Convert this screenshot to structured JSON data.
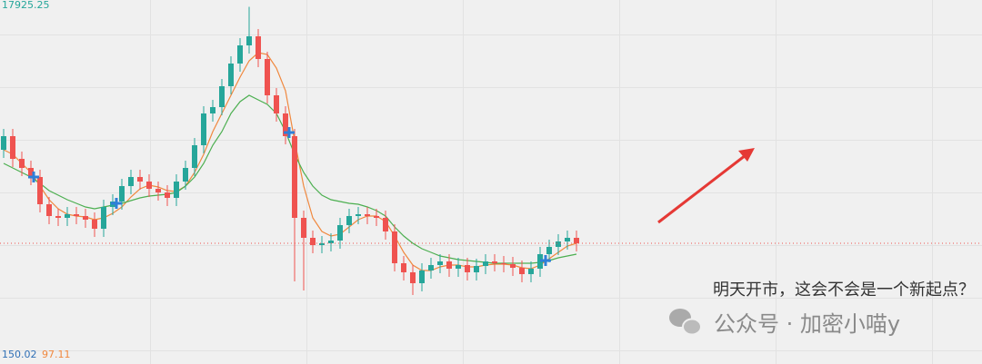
{
  "chart_data": {
    "type": "candlestick",
    "up_color": "#26a69a",
    "down_color": "#ef5350",
    "ylim": [
      14000,
      18000
    ],
    "open": [
      16350,
      16500,
      16250,
      16150,
      16050,
      15750,
      15620,
      15600,
      15640,
      15620,
      15580,
      15480,
      15720,
      15780,
      15950,
      16050,
      16000,
      15920,
      15880,
      15820,
      16000,
      16150,
      16400,
      16750,
      16820,
      17050,
      17300,
      17500,
      17600,
      17350,
      16950,
      16750,
      16500,
      15600,
      15380,
      15300,
      15320,
      15350,
      15520,
      15620,
      15640,
      15620,
      15600,
      15450,
      15100,
      15000,
      14880,
      15020,
      15080,
      15120,
      15040,
      15080,
      15000,
      15070,
      15120,
      15100,
      15090,
      15050,
      14980,
      15040,
      15200,
      15280,
      15340,
      15380
    ],
    "high": [
      16580,
      16580,
      16330,
      16230,
      16130,
      15830,
      15700,
      15720,
      15720,
      15700,
      15660,
      15800,
      15860,
      16030,
      16130,
      16130,
      16080,
      16000,
      15960,
      16080,
      16230,
      16480,
      16830,
      16900,
      17130,
      17380,
      17580,
      17925.25,
      17680,
      17430,
      17030,
      16830,
      16580,
      15680,
      15460,
      15400,
      15430,
      15600,
      15700,
      15720,
      15720,
      15700,
      15680,
      15530,
      15180,
      15080,
      15100,
      15160,
      15200,
      15200,
      15160,
      15160,
      15150,
      15200,
      15200,
      15180,
      15170,
      15130,
      15120,
      15280,
      15360,
      15420,
      15460,
      15460
    ],
    "low": [
      16260,
      16160,
      16060,
      15960,
      15660,
      15530,
      15510,
      15510,
      15530,
      15490,
      15390,
      15390,
      15630,
      15690,
      15860,
      15910,
      15830,
      15790,
      15730,
      15730,
      15910,
      16060,
      16310,
      16660,
      16730,
      16960,
      17210,
      17410,
      17260,
      16860,
      16660,
      16410,
      14900,
      14800,
      15210,
      15210,
      15230,
      15260,
      15430,
      15530,
      15530,
      15510,
      15360,
      15010,
      14910,
      14750,
      14790,
      14930,
      14990,
      14950,
      14950,
      14910,
      14910,
      14980,
      15010,
      15000,
      14960,
      14890,
      14890,
      14950,
      15110,
      15190,
      15250,
      15230
    ],
    "close": [
      16500,
      16250,
      16150,
      16050,
      15750,
      15620,
      15600,
      15640,
      15620,
      15580,
      15480,
      15720,
      15780,
      15950,
      16050,
      16000,
      15920,
      15880,
      15820,
      16000,
      16150,
      16400,
      16750,
      16820,
      17050,
      17300,
      17500,
      17600,
      17350,
      16950,
      16750,
      16500,
      15600,
      15380,
      15300,
      15320,
      15350,
      15520,
      15620,
      15640,
      15620,
      15600,
      15450,
      15100,
      15000,
      14880,
      15020,
      15080,
      15120,
      15040,
      15080,
      15000,
      15070,
      15120,
      15100,
      15090,
      15050,
      14980,
      15040,
      15200,
      15280,
      15340,
      15380,
      15320
    ],
    "series": [
      {
        "color": "#f0883e",
        "values": [
          16350,
          16300,
          16200,
          16100,
          15950,
          15800,
          15700,
          15640,
          15620,
          15610,
          15580,
          15600,
          15650,
          15720,
          15830,
          15920,
          15960,
          15940,
          15900,
          15890,
          15950,
          16100,
          16300,
          16550,
          16750,
          16950,
          17150,
          17330,
          17420,
          17400,
          17250,
          17000,
          16450,
          15950,
          15600,
          15450,
          15400,
          15420,
          15500,
          15580,
          15620,
          15620,
          15560,
          15400,
          15220,
          15080,
          15020,
          15020,
          15060,
          15080,
          15080,
          15060,
          15060,
          15080,
          15090,
          15090,
          15080,
          15050,
          15040,
          15080,
          15150,
          15220,
          15290,
          15320
        ]
      },
      {
        "color": "#4caf50",
        "values": [
          16200,
          16150,
          16100,
          16050,
          15980,
          15900,
          15850,
          15800,
          15760,
          15720,
          15700,
          15720,
          15740,
          15760,
          15790,
          15820,
          15840,
          15850,
          15860,
          15880,
          15950,
          16050,
          16200,
          16400,
          16550,
          16750,
          16880,
          16950,
          16900,
          16850,
          16750,
          16550,
          16300,
          16100,
          15950,
          15850,
          15800,
          15780,
          15760,
          15750,
          15720,
          15680,
          15620,
          15500,
          15400,
          15320,
          15260,
          15220,
          15180,
          15160,
          15140,
          15130,
          15120,
          15110,
          15100,
          15100,
          15100,
          15100,
          15100,
          15110,
          15130,
          15160,
          15180,
          15200
        ]
      }
    ],
    "indicator_values": [
      {
        "value": 150.02,
        "color": "#2f6fb5"
      },
      {
        "value": 97.11,
        "color": "#f0883e"
      }
    ],
    "annotation": "明天开市，这会不会是一个新起点？",
    "watermark": "公众号 · 加密小喵y"
  }
}
